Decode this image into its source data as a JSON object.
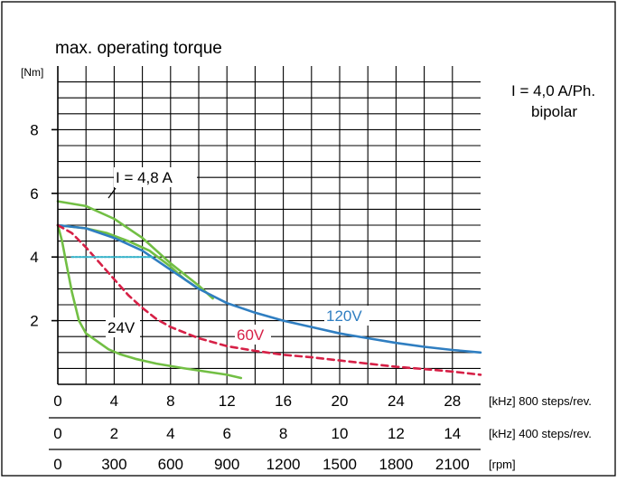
{
  "chart_data": {
    "type": "line",
    "title": "max. operating torque",
    "ylabel": "[Nm]",
    "ylim": [
      0,
      10
    ],
    "xlim": [
      0,
      30
    ],
    "grid": true,
    "y_ticks": [
      {
        "value": 2,
        "label": "2"
      },
      {
        "value": 4,
        "label": "4"
      },
      {
        "value": 6,
        "label": "6"
      },
      {
        "value": 8,
        "label": "8"
      }
    ],
    "x_axes": [
      {
        "unit": "[kHz] 800 steps/rev.",
        "ticks": [
          {
            "value": 0,
            "label": "0"
          },
          {
            "value": 4,
            "label": "4"
          },
          {
            "value": 8,
            "label": "8"
          },
          {
            "value": 12,
            "label": "12"
          },
          {
            "value": 16,
            "label": "16"
          },
          {
            "value": 20,
            "label": "20"
          },
          {
            "value": 24,
            "label": "24"
          },
          {
            "value": 28,
            "label": "28"
          }
        ]
      },
      {
        "unit": "[kHz] 400 steps/rev.",
        "ticks": [
          {
            "value": 0,
            "label": "0"
          },
          {
            "value": 4,
            "label": "2"
          },
          {
            "value": 8,
            "label": "4"
          },
          {
            "value": 12,
            "label": "6"
          },
          {
            "value": 16,
            "label": "8"
          },
          {
            "value": 20,
            "label": "10"
          },
          {
            "value": 24,
            "label": "12"
          },
          {
            "value": 28,
            "label": "14"
          }
        ]
      },
      {
        "unit": "[rpm]",
        "ticks": [
          {
            "value": 0,
            "label": "0"
          },
          {
            "value": 4,
            "label": "300"
          },
          {
            "value": 8,
            "label": "600"
          },
          {
            "value": 12,
            "label": "900"
          },
          {
            "value": 16,
            "label": "1200"
          },
          {
            "value": 20,
            "label": "1500"
          },
          {
            "value": 24,
            "label": "1800"
          },
          {
            "value": 28,
            "label": "2100"
          }
        ]
      }
    ],
    "annotations": {
      "current": "I = 4,0 A/Ph.",
      "mode": "bipolar"
    },
    "series": [
      {
        "name": "24V",
        "color": "#72bf44",
        "style": "solid",
        "x": [
          0,
          0.3,
          0.6,
          1.0,
          1.5,
          2.0,
          2.8,
          3.6,
          4.4,
          5.5,
          7.0,
          9.0,
          10.5,
          12.0,
          13.0
        ],
        "y": [
          5.0,
          4.5,
          3.8,
          2.9,
          2.0,
          1.6,
          1.35,
          1.1,
          0.95,
          0.8,
          0.65,
          0.5,
          0.4,
          0.3,
          0.2
        ]
      },
      {
        "name": "I = 4,8 A",
        "color": "#72bf44",
        "style": "solid",
        "x": [
          0,
          2.0,
          4.0,
          6.0,
          8.0,
          10.0,
          11.0
        ],
        "y": [
          5.75,
          5.6,
          5.2,
          4.6,
          3.8,
          3.1,
          2.7
        ]
      },
      {
        "name": "",
        "color": "#72bf44",
        "style": "solid",
        "x": [
          0,
          2.0,
          3.5,
          5.0,
          6.5,
          8.0,
          9.0,
          10.0
        ],
        "y": [
          5.0,
          4.9,
          4.75,
          4.5,
          4.2,
          3.7,
          3.3,
          3.0
        ]
      },
      {
        "name": "120V",
        "color": "#2f7ec1",
        "style": "solid",
        "x": [
          0,
          2.0,
          4.0,
          6.0,
          8.0,
          10.0,
          12.0,
          14.0,
          16.0,
          18.0,
          20.0,
          22.0,
          24.0,
          26.0,
          28.0,
          30.0
        ],
        "y": [
          5.0,
          4.9,
          4.6,
          4.2,
          3.6,
          3.0,
          2.55,
          2.25,
          2.0,
          1.8,
          1.6,
          1.45,
          1.3,
          1.18,
          1.08,
          1.0
        ]
      },
      {
        "name": "60V",
        "color": "#d62046",
        "style": "dashed",
        "x": [
          0,
          1.0,
          2.0,
          3.0,
          4.0,
          5.0,
          6.0,
          7.0,
          8.0,
          10.0,
          12.0,
          14.0,
          16.0,
          18.0,
          20.0,
          22.0,
          24.0,
          26.0,
          28.0,
          30.0
        ],
        "y": [
          5.0,
          4.75,
          4.3,
          3.8,
          3.3,
          2.8,
          2.4,
          2.05,
          1.8,
          1.45,
          1.2,
          1.05,
          0.93,
          0.85,
          0.75,
          0.65,
          0.55,
          0.48,
          0.4,
          0.3
        ]
      },
      {
        "name": "",
        "color": "#36b3c9",
        "style": "dotted",
        "x": [
          1.0,
          2.0,
          3.0,
          4.0,
          5.0,
          6.0,
          6.7
        ],
        "y": [
          4.0,
          4.0,
          4.0,
          4.0,
          4.0,
          4.0,
          4.0
        ]
      }
    ]
  }
}
